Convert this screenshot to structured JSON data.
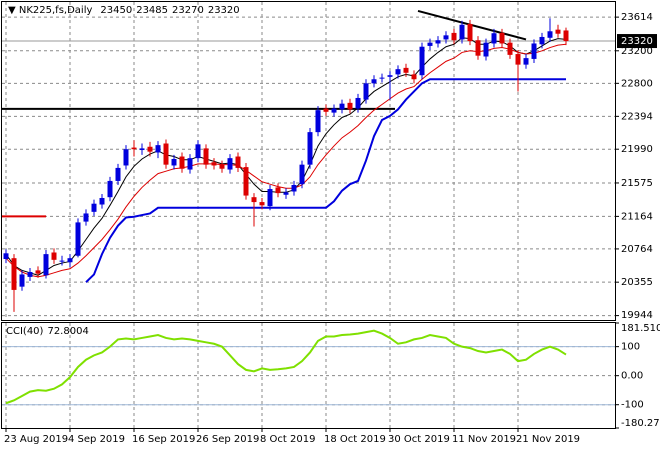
{
  "chart_data": [
    {
      "type": "candlestick",
      "title": "NK225,fs,Daily",
      "categories": [
        "23 Aug 2019",
        null,
        null,
        null,
        null,
        null,
        null,
        null,
        "4 Sep 2019",
        null,
        null,
        null,
        null,
        null,
        null,
        null,
        "16 Sep 2019",
        null,
        null,
        null,
        null,
        null,
        null,
        null,
        "26 Sep 2019",
        null,
        null,
        null,
        null,
        null,
        null,
        null,
        "8 Oct 2019",
        null,
        null,
        null,
        null,
        null,
        null,
        null,
        "18 Oct 2019",
        null,
        null,
        null,
        null,
        null,
        null,
        null,
        "30 Oct 2019",
        null,
        null,
        null,
        null,
        null,
        null,
        null,
        "11 Nov 2019",
        null,
        null,
        null,
        null,
        null,
        null,
        null,
        "21 Nov 2019",
        null,
        null,
        null,
        null,
        null,
        null
      ],
      "open": [
        20640,
        20650,
        20300,
        20420,
        20500,
        20440,
        20720,
        20620,
        20600,
        20680,
        21100,
        21220,
        21310,
        21400,
        21600,
        21790,
        22010,
        21980,
        22020,
        21950,
        22060,
        21790,
        21900,
        21740,
        21880,
        22000,
        21830,
        21800,
        21740,
        21900,
        21770,
        21400,
        21340,
        21290,
        21520,
        21430,
        21470,
        21560,
        21800,
        22200,
        22490,
        22440,
        22480,
        22560,
        22490,
        22600,
        22800,
        22860,
        22880,
        22910,
        22990,
        22910,
        22900,
        23260,
        23290,
        23340,
        23420,
        23340,
        23530,
        23330,
        23130,
        23290,
        23420,
        23300,
        23160,
        23030,
        23100,
        23280,
        23360,
        23460,
        23450
      ],
      "high": [
        20760,
        20700,
        20500,
        20530,
        20550,
        20750,
        20770,
        20680,
        20700,
        21140,
        21250,
        21370,
        21440,
        21650,
        21810,
        22040,
        22100,
        22060,
        22080,
        22090,
        22110,
        21920,
        21950,
        21930,
        22100,
        22050,
        21880,
        21850,
        21930,
        21950,
        21820,
        21450,
        21390,
        21550,
        21570,
        21510,
        21600,
        21850,
        22250,
        22520,
        22540,
        22540,
        22600,
        22610,
        22670,
        22850,
        22900,
        22920,
        22950,
        23020,
        23040,
        22960,
        23300,
        23350,
        23380,
        23440,
        23470,
        23570,
        23580,
        23380,
        23350,
        23470,
        23470,
        23350,
        23210,
        23160,
        23340,
        23420,
        23600,
        23520,
        23485
      ],
      "low": [
        20590,
        19990,
        20250,
        20370,
        20410,
        20400,
        20580,
        20560,
        20540,
        20660,
        21050,
        21170,
        21260,
        21350,
        21550,
        21740,
        21900,
        21920,
        21900,
        21880,
        21750,
        21740,
        21700,
        21690,
        21830,
        21750,
        21740,
        21700,
        21690,
        21710,
        21370,
        21040,
        21250,
        21240,
        21400,
        21380,
        21420,
        21510,
        21750,
        22150,
        22400,
        22390,
        22430,
        22430,
        22440,
        22550,
        22750,
        22810,
        22600,
        22860,
        22880,
        22800,
        22850,
        23210,
        23240,
        23290,
        23280,
        23290,
        23270,
        23090,
        23080,
        23240,
        23240,
        23100,
        22700,
        22980,
        23050,
        23230,
        23310,
        23360,
        23270
      ],
      "close": [
        20710,
        20260,
        20450,
        20480,
        20460,
        20700,
        20630,
        20620,
        20650,
        21090,
        21200,
        21320,
        21390,
        21600,
        21760,
        21990,
        21990,
        22000,
        21960,
        22040,
        21800,
        21870,
        21750,
        21880,
        22050,
        21800,
        21790,
        21750,
        21880,
        21760,
        21420,
        21340,
        21300,
        21500,
        21450,
        21460,
        21550,
        21800,
        22200,
        22470,
        22450,
        22490,
        22550,
        22480,
        22620,
        22800,
        22850,
        22870,
        22900,
        22974,
        22930,
        22850,
        23250,
        23300,
        23330,
        23390,
        23330,
        23520,
        23320,
        23140,
        23300,
        23416,
        23290,
        23150,
        23030,
        23110,
        23290,
        23370,
        23440,
        23410,
        23320
      ],
      "up_color": "#0000dd",
      "down_color": "#dd0000",
      "series": [
        {
          "color": "#000000",
          "values": [
            20700,
            20560,
            20500,
            20470,
            20440,
            20500,
            20560,
            20590,
            20610,
            20740,
            20880,
            21020,
            21140,
            21300,
            21470,
            21650,
            21780,
            21870,
            21930,
            21970,
            21920,
            21900,
            21860,
            21860,
            21900,
            21870,
            21840,
            21810,
            21820,
            21800,
            21680,
            21560,
            21470,
            21470,
            21460,
            21460,
            21490,
            21600,
            21800,
            22030,
            22180,
            22290,
            22380,
            22420,
            22500,
            22610,
            22700,
            22760,
            22820,
            22880,
            22910,
            22890,
            23000,
            23100,
            23180,
            23250,
            23280,
            23360,
            23350,
            23280,
            23280,
            23320,
            23310,
            23260,
            23180,
            23160,
            23200,
            23260,
            23320,
            23350,
            23340
          ]
        },
        {
          "color": "#dd0000",
          "values": [
            20650,
            20550,
            20480,
            20440,
            20420,
            20440,
            20470,
            20500,
            20520,
            20590,
            20680,
            20780,
            20880,
            21000,
            21130,
            21280,
            21410,
            21520,
            21610,
            21690,
            21720,
            21750,
            21760,
            21780,
            21810,
            21810,
            21810,
            21800,
            21800,
            21790,
            21730,
            21660,
            21590,
            21560,
            21530,
            21510,
            21510,
            21550,
            21650,
            21800,
            21920,
            22030,
            22130,
            22200,
            22280,
            22380,
            22470,
            22540,
            22610,
            22680,
            22730,
            22760,
            22850,
            22930,
            23000,
            23070,
            23110,
            23180,
            23200,
            23190,
            23200,
            23230,
            23240,
            23220,
            23180,
            23160,
            23170,
            23200,
            23240,
            23270,
            23280
          ]
        },
        {
          "color": "#0000dd",
          "values": [
            null,
            null,
            null,
            null,
            null,
            null,
            null,
            null,
            null,
            null,
            20355,
            20450,
            20700,
            20900,
            21050,
            21150,
            21160,
            21180,
            21200,
            21270,
            21270,
            21270,
            21270,
            21270,
            21270,
            21270,
            21270,
            21270,
            21270,
            21270,
            21270,
            21270,
            21270,
            21270,
            21270,
            21270,
            21270,
            21270,
            21270,
            21270,
            21270,
            21350,
            21480,
            21560,
            21600,
            21850,
            22150,
            22350,
            22400,
            22480,
            22600,
            22700,
            22800,
            22850,
            22850,
            22850,
            22850,
            22850,
            22850,
            22850,
            22850,
            22850,
            22850,
            22850,
            22850,
            22850,
            22850,
            22850,
            22850,
            22850,
            22850
          ]
        }
      ],
      "levels": [
        {
          "value": 22486,
          "color": "#000000"
        },
        {
          "value": 21164,
          "color": "#dd0000"
        }
      ],
      "trendline": {
        "x": [
          51.5,
          65
        ],
        "y": [
          23690,
          23340
        ],
        "color": "#000000"
      },
      "ylim": [
        19890,
        23800
      ],
      "yticks": [
        19944,
        20355,
        20764,
        21164,
        21575,
        21990,
        22394,
        22800,
        23200,
        23614
      ],
      "grid": true
    },
    {
      "type": "line",
      "title": "CCI(40)",
      "color": "#7fe000",
      "level_color": "#9fb8d8",
      "values": [
        -95,
        -85,
        -70,
        -55,
        -50,
        -52,
        -45,
        -30,
        -5,
        30,
        55,
        70,
        80,
        100,
        125,
        128,
        125,
        130,
        135,
        140,
        130,
        125,
        128,
        125,
        120,
        115,
        110,
        100,
        70,
        40,
        20,
        15,
        25,
        20,
        22,
        25,
        30,
        50,
        80,
        120,
        135,
        135,
        140,
        142,
        145,
        150,
        155,
        145,
        130,
        110,
        115,
        125,
        130,
        140,
        135,
        130,
        110,
        100,
        95,
        85,
        80,
        85,
        90,
        75,
        50,
        55,
        75,
        90,
        100,
        90,
        72.8004
      ],
      "levels": [
        100,
        -100
      ],
      "ylim": [
        -180.2771,
        181.5102
      ],
      "yticks": [
        181.5102,
        100,
        {
          "value": 0,
          "label": "0.00"
        },
        -100,
        -180.2771
      ],
      "grid": true
    }
  ]
}
